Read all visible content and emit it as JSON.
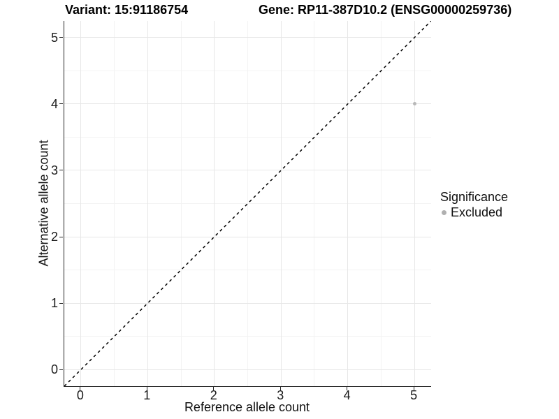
{
  "chart_data": {
    "type": "scatter",
    "titles": {
      "left": "Variant: 15:91186754",
      "right": "Gene: RP11-387D10.2 (ENSG00000259736)"
    },
    "xlabel": "Reference allele count",
    "ylabel": "Alternative allele count",
    "xlim": [
      -0.25,
      5.25
    ],
    "ylim": [
      -0.25,
      5.25
    ],
    "x_ticks": [
      0,
      1,
      2,
      3,
      4,
      5
    ],
    "y_ticks": [
      0,
      1,
      2,
      3,
      4,
      5
    ],
    "grid": {
      "major_color": "#e7e7e7",
      "minor_color": "#f3f3f3"
    },
    "axis_color": "#262626",
    "identity_line": {
      "style": "dashed",
      "color": "#000000",
      "from": [
        -0.25,
        -0.25
      ],
      "to": [
        5.25,
        5.25
      ]
    },
    "points": [
      {
        "x": 5,
        "y": 4,
        "series": "Excluded",
        "diameter": 5
      }
    ],
    "series_colors": {
      "Excluded": "#b8b8b8"
    },
    "legend": {
      "title": "Significance",
      "position": "right",
      "entries": [
        {
          "label": "Excluded",
          "color": "#b0b0b0"
        }
      ]
    }
  }
}
